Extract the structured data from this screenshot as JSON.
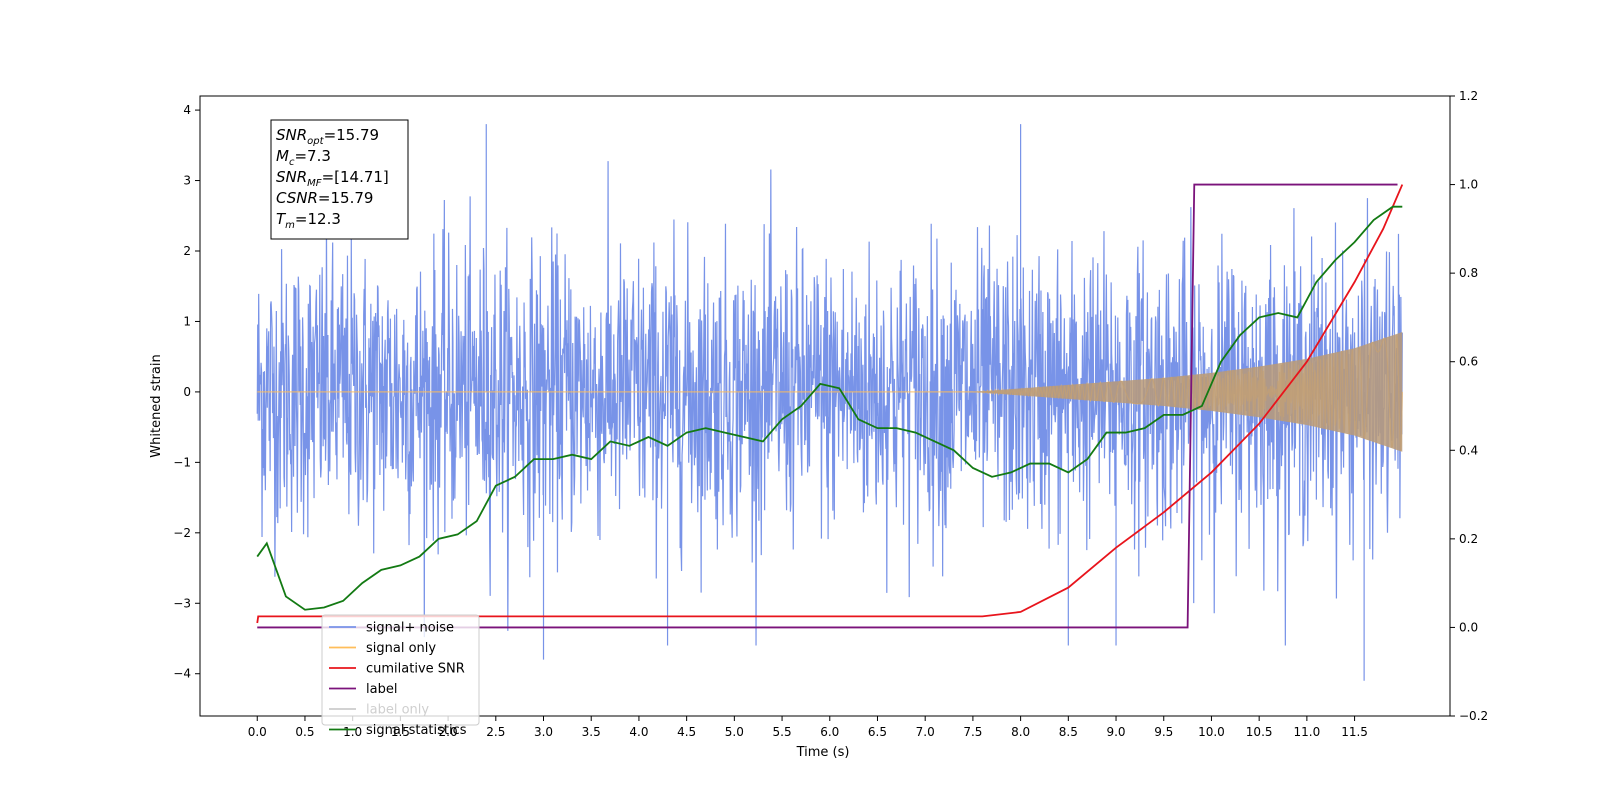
{
  "chart_data": {
    "type": "line",
    "title": "",
    "xlabel": "Time (s)",
    "ylabel": "Whitened strain",
    "y2label": "",
    "xlim": [
      -0.6,
      12.5
    ],
    "ylim": [
      -4.6,
      4.2
    ],
    "y2lim": [
      -0.2,
      1.2
    ],
    "x_ticks": [
      0.0,
      0.5,
      1.0,
      1.5,
      2.0,
      2.5,
      3.0,
      3.5,
      4.0,
      4.5,
      5.0,
      5.5,
      6.0,
      6.5,
      7.0,
      7.5,
      8.0,
      8.5,
      9.0,
      9.5,
      10.0,
      10.5,
      11.0,
      11.5
    ],
    "x_tick_labels": [
      "0.0",
      "0.5",
      "1.0",
      "1.5",
      "2.0",
      "2.5",
      "3.0",
      "3.5",
      "4.0",
      "4.5",
      "5.0",
      "5.5",
      "6.0",
      "6.5",
      "7.0",
      "7.5",
      "8.0",
      "8.5",
      "9.0",
      "9.5",
      "10.0",
      "10.5",
      "11.0",
      "11.5"
    ],
    "y_ticks": [
      -4,
      -3,
      -2,
      -1,
      0,
      1,
      2,
      3,
      4
    ],
    "y_tick_labels": [
      "−4",
      "−3",
      "−2",
      "−1",
      "0",
      "1",
      "2",
      "3",
      "4"
    ],
    "y2_ticks": [
      -0.2,
      0.0,
      0.2,
      0.4,
      0.6,
      0.8,
      1.0,
      1.2
    ],
    "y2_tick_labels": [
      "−0.2",
      "0.0",
      "0.2",
      "0.4",
      "0.6",
      "0.8",
      "1.0",
      "1.2"
    ],
    "grid": false,
    "legend_position": "lower-left",
    "series": [
      {
        "name": "signal+ noise",
        "axis": "left",
        "color": "#7893e8",
        "kind": "noise-band",
        "x_range": [
          0.0,
          12.0
        ],
        "noise_sigma": 1.0,
        "notable_peaks": [
          [
            2.4,
            3.8
          ],
          [
            8.0,
            3.8
          ],
          [
            3.0,
            -3.8
          ],
          [
            4.3,
            -3.6
          ],
          [
            11.6,
            -4.1
          ],
          [
            9.0,
            -3.6
          ],
          [
            8.5,
            -3.6
          ]
        ]
      },
      {
        "name": "signal only",
        "axis": "left",
        "color": "#ffbe5a",
        "kind": "chirp-envelope",
        "envelope_x": [
          0.0,
          7.5,
          8.0,
          8.5,
          9.0,
          9.5,
          10.0,
          10.5,
          11.0,
          11.5,
          12.0
        ],
        "envelope_y": [
          0.0,
          0.0,
          0.05,
          0.1,
          0.15,
          0.2,
          0.27,
          0.36,
          0.47,
          0.62,
          0.85
        ]
      },
      {
        "name": "cumilative SNR",
        "axis": "right",
        "color": "#e8141c",
        "x": [
          0.0,
          0.01,
          7.6,
          8.0,
          8.5,
          9.0,
          9.5,
          10.0,
          10.5,
          11.0,
          11.5,
          11.8,
          12.0
        ],
        "y": [
          0.01,
          0.025,
          0.025,
          0.035,
          0.09,
          0.18,
          0.26,
          0.35,
          0.46,
          0.6,
          0.78,
          0.9,
          1.0
        ]
      },
      {
        "name": "label",
        "axis": "right",
        "color": "#7b137b",
        "x": [
          0.0,
          9.75,
          9.82,
          11.95
        ],
        "y": [
          0.0,
          0.0,
          1.0,
          1.0
        ]
      },
      {
        "name": "label only",
        "axis": "right",
        "color": "#cccccc",
        "hidden": true,
        "x": [],
        "y": []
      },
      {
        "name": "signal statistics",
        "axis": "right",
        "color": "#137a13",
        "x": [
          0.0,
          0.1,
          0.2,
          0.3,
          0.5,
          0.7,
          0.9,
          1.1,
          1.3,
          1.5,
          1.7,
          1.9,
          2.1,
          2.3,
          2.5,
          2.7,
          2.9,
          3.1,
          3.3,
          3.5,
          3.7,
          3.9,
          4.1,
          4.3,
          4.5,
          4.7,
          4.9,
          5.1,
          5.3,
          5.5,
          5.7,
          5.9,
          6.1,
          6.3,
          6.5,
          6.7,
          6.9,
          7.1,
          7.3,
          7.5,
          7.7,
          7.9,
          8.1,
          8.3,
          8.5,
          8.7,
          8.9,
          9.1,
          9.3,
          9.5,
          9.7,
          9.9,
          10.1,
          10.3,
          10.5,
          10.7,
          10.9,
          11.1,
          11.3,
          11.5,
          11.7,
          11.9,
          12.0
        ],
        "y": [
          0.16,
          0.19,
          0.13,
          0.07,
          0.04,
          0.045,
          0.06,
          0.1,
          0.13,
          0.14,
          0.16,
          0.2,
          0.21,
          0.24,
          0.32,
          0.34,
          0.38,
          0.38,
          0.39,
          0.38,
          0.42,
          0.41,
          0.43,
          0.41,
          0.44,
          0.45,
          0.44,
          0.43,
          0.42,
          0.47,
          0.5,
          0.55,
          0.54,
          0.47,
          0.45,
          0.45,
          0.44,
          0.42,
          0.4,
          0.36,
          0.34,
          0.35,
          0.37,
          0.37,
          0.35,
          0.38,
          0.44,
          0.44,
          0.45,
          0.48,
          0.48,
          0.5,
          0.6,
          0.66,
          0.7,
          0.71,
          0.7,
          0.78,
          0.83,
          0.87,
          0.92,
          0.95,
          0.95
        ]
      }
    ],
    "annotation_box": {
      "lines": [
        {
          "base": "SNR",
          "sub": "opt",
          "value": "=15.79"
        },
        {
          "base": "M",
          "sub": "c",
          "value": "=7.3"
        },
        {
          "base": "SNR",
          "sub": "MF",
          "value": "=[14.71]"
        },
        {
          "base": "CSNR",
          "sub": "",
          "value": "=15.79"
        },
        {
          "base": "T",
          "sub": "m",
          "value": "=12.3"
        }
      ]
    }
  }
}
